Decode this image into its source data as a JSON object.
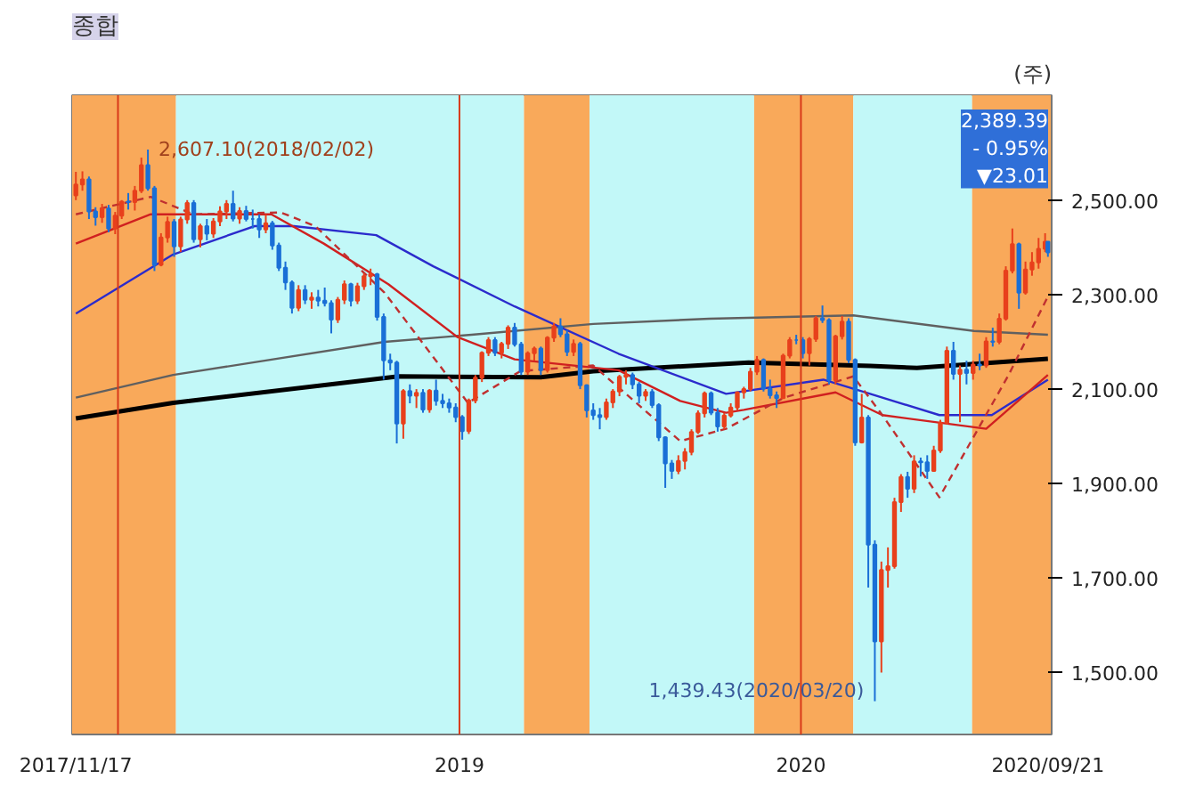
{
  "chart_data": {
    "type": "candlestick",
    "title": "종합",
    "subtitle": "(주)",
    "x": [
      "2017-11-17",
      "2017-11-24",
      "2017-12-01",
      "2017-12-08",
      "2017-12-15",
      "2017-12-22",
      "2017-12-29",
      "2018-01-05",
      "2018-01-12",
      "2018-01-19",
      "2018-01-26",
      "2018-02-02",
      "2018-02-09",
      "2018-02-16",
      "2018-02-23",
      "2018-03-02",
      "2018-03-09",
      "2018-03-16",
      "2018-03-23",
      "2018-03-30",
      "2018-04-06",
      "2018-04-13",
      "2018-04-20",
      "2018-04-27",
      "2018-05-04",
      "2018-05-11",
      "2018-05-18",
      "2018-05-25",
      "2018-06-01",
      "2018-06-08",
      "2018-06-15",
      "2018-06-22",
      "2018-06-29",
      "2018-07-06",
      "2018-07-13",
      "2018-07-20",
      "2018-07-27",
      "2018-08-03",
      "2018-08-10",
      "2018-08-17",
      "2018-08-24",
      "2018-08-31",
      "2018-09-07",
      "2018-09-14",
      "2018-09-21",
      "2018-09-28",
      "2018-10-05",
      "2018-10-12",
      "2018-10-19",
      "2018-10-26",
      "2018-11-02",
      "2018-11-09",
      "2018-11-16",
      "2018-11-23",
      "2018-11-30",
      "2018-12-07",
      "2018-12-14",
      "2018-12-21",
      "2018-12-28",
      "2019-01-04",
      "2019-01-11",
      "2019-01-18",
      "2019-01-25",
      "2019-02-01",
      "2019-02-08",
      "2019-02-15",
      "2019-02-22",
      "2019-03-01",
      "2019-03-08",
      "2019-03-15",
      "2019-03-22",
      "2019-03-29",
      "2019-04-05",
      "2019-04-12",
      "2019-04-19",
      "2019-04-26",
      "2019-05-03",
      "2019-05-10",
      "2019-05-17",
      "2019-05-24",
      "2019-05-31",
      "2019-06-07",
      "2019-06-14",
      "2019-06-21",
      "2019-06-28",
      "2019-07-05",
      "2019-07-12",
      "2019-07-19",
      "2019-07-26",
      "2019-08-02",
      "2019-08-09",
      "2019-08-16",
      "2019-08-23",
      "2019-08-30",
      "2019-09-06",
      "2019-09-13",
      "2019-09-20",
      "2019-09-27",
      "2019-10-04",
      "2019-10-11",
      "2019-10-18",
      "2019-10-25",
      "2019-11-01",
      "2019-11-08",
      "2019-11-15",
      "2019-11-22",
      "2019-11-29",
      "2019-12-06",
      "2019-12-13",
      "2019-12-20",
      "2019-12-27",
      "2020-01-03",
      "2020-01-10",
      "2020-01-17",
      "2020-01-24",
      "2020-01-31",
      "2020-02-07",
      "2020-02-14",
      "2020-02-21",
      "2020-02-28",
      "2020-03-06",
      "2020-03-13",
      "2020-03-20",
      "2020-03-27",
      "2020-04-03",
      "2020-04-10",
      "2020-04-17",
      "2020-04-24",
      "2020-05-01",
      "2020-05-08",
      "2020-05-15",
      "2020-05-22",
      "2020-05-29",
      "2020-06-05",
      "2020-06-12",
      "2020-06-19",
      "2020-06-26",
      "2020-07-03",
      "2020-07-10",
      "2020-07-17",
      "2020-07-24",
      "2020-07-31",
      "2020-08-07",
      "2020-08-14",
      "2020-08-21",
      "2020-08-28",
      "2020-09-04",
      "2020-09-11",
      "2020-09-18",
      "2020-09-21"
    ],
    "ohlc": [
      [
        2510,
        2560,
        2500,
        2533
      ],
      [
        2533,
        2561,
        2520,
        2544
      ],
      [
        2544,
        2550,
        2460,
        2476
      ],
      [
        2476,
        2485,
        2446,
        2464
      ],
      [
        2464,
        2492,
        2452,
        2482
      ],
      [
        2482,
        2490,
        2432,
        2440
      ],
      [
        2440,
        2475,
        2428,
        2467
      ],
      [
        2467,
        2500,
        2460,
        2497
      ],
      [
        2497,
        2515,
        2480,
        2496
      ],
      [
        2496,
        2530,
        2478,
        2520
      ],
      [
        2520,
        2590,
        2515,
        2574
      ],
      [
        2574,
        2607.1,
        2520,
        2525
      ],
      [
        2525,
        2530,
        2350,
        2363
      ],
      [
        2363,
        2430,
        2360,
        2421
      ],
      [
        2421,
        2465,
        2410,
        2454
      ],
      [
        2454,
        2460,
        2380,
        2402
      ],
      [
        2402,
        2465,
        2390,
        2459
      ],
      [
        2459,
        2500,
        2450,
        2494
      ],
      [
        2494,
        2500,
        2410,
        2417
      ],
      [
        2417,
        2450,
        2400,
        2445
      ],
      [
        2445,
        2460,
        2415,
        2429
      ],
      [
        2429,
        2462,
        2420,
        2455
      ],
      [
        2455,
        2487,
        2445,
        2476
      ],
      [
        2476,
        2500,
        2460,
        2492
      ],
      [
        2492,
        2520,
        2455,
        2461
      ],
      [
        2461,
        2485,
        2450,
        2477
      ],
      [
        2477,
        2488,
        2455,
        2460
      ],
      [
        2460,
        2480,
        2440,
        2460
      ],
      [
        2460,
        2470,
        2420,
        2438
      ],
      [
        2438,
        2470,
        2430,
        2451
      ],
      [
        2451,
        2456,
        2395,
        2404
      ],
      [
        2404,
        2410,
        2350,
        2357
      ],
      [
        2357,
        2370,
        2310,
        2326
      ],
      [
        2326,
        2330,
        2260,
        2272
      ],
      [
        2272,
        2320,
        2265,
        2310
      ],
      [
        2310,
        2320,
        2280,
        2289
      ],
      [
        2289,
        2305,
        2270,
        2294
      ],
      [
        2294,
        2310,
        2275,
        2287
      ],
      [
        2287,
        2315,
        2275,
        2282
      ],
      [
        2282,
        2288,
        2218,
        2247
      ],
      [
        2247,
        2295,
        2240,
        2289
      ],
      [
        2289,
        2330,
        2280,
        2322
      ],
      [
        2322,
        2325,
        2275,
        2287
      ],
      [
        2287,
        2325,
        2280,
        2318
      ],
      [
        2318,
        2345,
        2310,
        2339
      ],
      [
        2339,
        2355,
        2320,
        2343
      ],
      [
        2343,
        2346,
        2245,
        2253
      ],
      [
        2253,
        2260,
        2120,
        2161
      ],
      [
        2161,
        2175,
        2140,
        2156
      ],
      [
        2156,
        2160,
        1985,
        2027
      ],
      [
        2027,
        2100,
        1995,
        2096
      ],
      [
        2096,
        2110,
        2070,
        2086
      ],
      [
        2086,
        2100,
        2060,
        2092
      ],
      [
        2092,
        2100,
        2050,
        2057
      ],
      [
        2057,
        2100,
        2050,
        2097
      ],
      [
        2097,
        2120,
        2065,
        2075
      ],
      [
        2075,
        2090,
        2060,
        2070
      ],
      [
        2070,
        2080,
        2050,
        2061
      ],
      [
        2061,
        2070,
        2030,
        2041
      ],
      [
        2041,
        2045,
        1993,
        2011
      ],
      [
        2011,
        2080,
        2005,
        2076
      ],
      [
        2076,
        2130,
        2070,
        2124
      ],
      [
        2124,
        2180,
        2115,
        2177
      ],
      [
        2177,
        2210,
        2170,
        2204
      ],
      [
        2204,
        2210,
        2170,
        2177
      ],
      [
        2177,
        2200,
        2165,
        2196
      ],
      [
        2196,
        2235,
        2185,
        2230
      ],
      [
        2230,
        2240,
        2190,
        2195
      ],
      [
        2195,
        2200,
        2130,
        2137
      ],
      [
        2137,
        2180,
        2130,
        2176
      ],
      [
        2176,
        2190,
        2160,
        2186
      ],
      [
        2186,
        2190,
        2130,
        2140
      ],
      [
        2140,
        2212,
        2135,
        2209
      ],
      [
        2209,
        2240,
        2200,
        2233
      ],
      [
        2233,
        2250,
        2210,
        2216
      ],
      [
        2216,
        2225,
        2170,
        2179
      ],
      [
        2179,
        2205,
        2170,
        2196
      ],
      [
        2196,
        2200,
        2100,
        2108
      ],
      [
        2108,
        2110,
        2040,
        2055
      ],
      [
        2055,
        2070,
        2035,
        2045
      ],
      [
        2045,
        2060,
        2015,
        2041
      ],
      [
        2041,
        2080,
        2035,
        2072
      ],
      [
        2072,
        2100,
        2060,
        2095
      ],
      [
        2095,
        2130,
        2085,
        2126
      ],
      [
        2126,
        2140,
        2110,
        2130
      ],
      [
        2130,
        2135,
        2100,
        2110
      ],
      [
        2110,
        2115,
        2070,
        2086
      ],
      [
        2086,
        2100,
        2075,
        2094
      ],
      [
        2094,
        2100,
        2060,
        2066
      ],
      [
        2066,
        2070,
        1990,
        1998
      ],
      [
        1998,
        2000,
        1891,
        1943
      ],
      [
        1943,
        1950,
        1910,
        1927
      ],
      [
        1927,
        1960,
        1920,
        1948
      ],
      [
        1948,
        1975,
        1930,
        1967
      ],
      [
        1967,
        2015,
        1960,
        2009
      ],
      [
        2009,
        2055,
        2005,
        2049
      ],
      [
        2049,
        2095,
        2040,
        2091
      ],
      [
        2091,
        2095,
        2045,
        2050
      ],
      [
        2050,
        2060,
        2010,
        2021
      ],
      [
        2021,
        2050,
        2015,
        2044
      ],
      [
        2044,
        2070,
        2040,
        2061
      ],
      [
        2061,
        2095,
        2055,
        2093
      ],
      [
        2093,
        2105,
        2080,
        2100
      ],
      [
        2100,
        2145,
        2095,
        2137
      ],
      [
        2137,
        2170,
        2130,
        2162
      ],
      [
        2162,
        2165,
        2095,
        2101
      ],
      [
        2101,
        2120,
        2080,
        2087
      ],
      [
        2087,
        2095,
        2060,
        2081
      ],
      [
        2081,
        2175,
        2080,
        2171
      ],
      [
        2171,
        2210,
        2165,
        2204
      ],
      [
        2204,
        2215,
        2195,
        2204
      ],
      [
        2204,
        2210,
        2165,
        2176
      ],
      [
        2176,
        2210,
        2150,
        2206
      ],
      [
        2206,
        2255,
        2200,
        2250
      ],
      [
        2250,
        2277,
        2240,
        2246
      ],
      [
        2246,
        2250,
        2110,
        2119
      ],
      [
        2119,
        2215,
        2110,
        2212
      ],
      [
        2212,
        2255,
        2205,
        2243
      ],
      [
        2243,
        2250,
        2155,
        2162
      ],
      [
        2162,
        2165,
        1980,
        1987
      ],
      [
        1987,
        2090,
        1985,
        2040
      ],
      [
        2040,
        2045,
        1680,
        1771
      ],
      [
        1771,
        1780,
        1439.43,
        1566
      ],
      [
        1566,
        1735,
        1500,
        1717
      ],
      [
        1717,
        1765,
        1680,
        1725
      ],
      [
        1725,
        1870,
        1720,
        1861
      ],
      [
        1861,
        1920,
        1840,
        1914
      ],
      [
        1914,
        1925,
        1870,
        1889
      ],
      [
        1889,
        1960,
        1880,
        1947
      ],
      [
        1947,
        1955,
        1915,
        1945
      ],
      [
        1945,
        1960,
        1910,
        1927
      ],
      [
        1927,
        1980,
        1925,
        1970
      ],
      [
        1970,
        2035,
        1965,
        2029
      ],
      [
        2029,
        2190,
        2025,
        2181
      ],
      [
        2181,
        2200,
        2120,
        2132
      ],
      [
        2132,
        2150,
        2030,
        2141
      ],
      [
        2141,
        2160,
        2110,
        2134
      ],
      [
        2134,
        2160,
        2120,
        2152
      ],
      [
        2152,
        2175,
        2140,
        2150
      ],
      [
        2150,
        2210,
        2145,
        2201
      ],
      [
        2201,
        2230,
        2190,
        2200
      ],
      [
        2200,
        2260,
        2195,
        2249
      ],
      [
        2249,
        2360,
        2245,
        2351
      ],
      [
        2351,
        2440,
        2345,
        2407
      ],
      [
        2407,
        2410,
        2270,
        2304
      ],
      [
        2304,
        2370,
        2300,
        2353
      ],
      [
        2353,
        2390,
        2340,
        2368
      ],
      [
        2368,
        2420,
        2355,
        2397
      ],
      [
        2397,
        2430,
        2390,
        2412
      ],
      [
        2412,
        2412,
        2380,
        2389.39
      ]
    ],
    "colors": [
      "#e8401c",
      "#e8401c",
      "#1a6fd6",
      "#1a6fd6",
      "#e8401c",
      "#1a6fd6",
      "#e8401c",
      "#e8401c",
      "#1a6fd6",
      "#e8401c",
      "#e8401c",
      "#1a6fd6",
      "#1a6fd6",
      "#e8401c",
      "#e8401c",
      "#1a6fd6",
      "#e8401c",
      "#e8401c",
      "#1a6fd6",
      "#e8401c",
      "#1a6fd6",
      "#e8401c",
      "#e8401c",
      "#e8401c",
      "#1a6fd6",
      "#e8401c",
      "#1a6fd6",
      "#1a6fd6",
      "#1a6fd6",
      "#e8401c",
      "#1a6fd6",
      "#1a6fd6",
      "#1a6fd6",
      "#1a6fd6",
      "#e8401c",
      "#1a6fd6",
      "#e8401c",
      "#1a6fd6",
      "#1a6fd6",
      "#1a6fd6",
      "#e8401c",
      "#e8401c",
      "#1a6fd6",
      "#e8401c",
      "#e8401c",
      "#e8401c",
      "#1a6fd6",
      "#1a6fd6",
      "#1a6fd6",
      "#1a6fd6",
      "#e8401c",
      "#1a6fd6",
      "#e8401c",
      "#1a6fd6",
      "#e8401c",
      "#1a6fd6",
      "#1a6fd6",
      "#1a6fd6",
      "#1a6fd6",
      "#1a6fd6",
      "#e8401c",
      "#e8401c",
      "#e8401c",
      "#e8401c",
      "#1a6fd6",
      "#e8401c",
      "#e8401c",
      "#1a6fd6",
      "#1a6fd6",
      "#e8401c",
      "#e8401c",
      "#1a6fd6",
      "#e8401c",
      "#e8401c",
      "#1a6fd6",
      "#1a6fd6",
      "#e8401c",
      "#1a6fd6",
      "#1a6fd6",
      "#1a6fd6",
      "#1a6fd6",
      "#e8401c",
      "#e8401c",
      "#e8401c",
      "#e8401c",
      "#1a6fd6",
      "#1a6fd6",
      "#e8401c",
      "#1a6fd6",
      "#1a6fd6",
      "#1a6fd6",
      "#1a6fd6",
      "#e8401c",
      "#e8401c",
      "#e8401c",
      "#e8401c",
      "#e8401c",
      "#1a6fd6",
      "#1a6fd6",
      "#e8401c",
      "#e8401c",
      "#e8401c",
      "#e8401c",
      "#e8401c",
      "#e8401c",
      "#1a6fd6",
      "#1a6fd6",
      "#1a6fd6",
      "#e8401c",
      "#e8401c",
      "#1a6fd6",
      "#1a6fd6",
      "#e8401c",
      "#e8401c",
      "#1a6fd6",
      "#1a6fd6",
      "#e8401c",
      "#e8401c",
      "#1a6fd6",
      "#1a6fd6",
      "#e8401c",
      "#1a6fd6",
      "#1a6fd6",
      "#e8401c",
      "#e8401c",
      "#e8401c",
      "#e8401c",
      "#1a6fd6",
      "#e8401c",
      "#1a6fd6",
      "#1a6fd6",
      "#e8401c",
      "#e8401c",
      "#e8401c",
      "#1a6fd6",
      "#e8401c",
      "#1a6fd6",
      "#e8401c",
      "#1a6fd6",
      "#e8401c",
      "#1a6fd6",
      "#e8401c",
      "#e8401c",
      "#e8401c",
      "#1a6fd6",
      "#e8401c",
      "#e8401c",
      "#e8401c",
      "#e8401c",
      "#1a6fd6"
    ],
    "series": [
      {
        "type": "line",
        "color": "#000000",
        "x": [
          "2017-11-17",
          "2018-03-01",
          "2018-10-28",
          "2019-03-29",
          "2019-05-24",
          "2019-11-06",
          "2020-03-15",
          "2020-05-04",
          "2020-09-21"
        ],
        "values": [
          2038,
          2071,
          2127,
          2125,
          2138,
          2156,
          2149,
          2145,
          2164
        ]
      },
      {
        "type": "line",
        "color": "#606060",
        "x": [
          "2017-11-17",
          "2018-03-01",
          "2018-10-13",
          "2019-01-14",
          "2019-05-24",
          "2019-09-25",
          "2020-02-26",
          "2020-07-04",
          "2020-09-21"
        ],
        "values": [
          2082,
          2130,
          2200,
          2215,
          2238,
          2249,
          2256,
          2223,
          2215
        ]
      },
      {
        "type": "line",
        "color": "#2b2bcc",
        "x": [
          "2017-11-17",
          "2018-03-01",
          "2018-05-27",
          "2018-07-08",
          "2018-10-04",
          "2018-12-04",
          "2019-03-01",
          "2019-06-20",
          "2019-10-13",
          "2020-01-25",
          "2020-03-15",
          "2020-05-28",
          "2020-07-23",
          "2020-09-21"
        ],
        "values": [
          2260,
          2385,
          2445,
          2445,
          2426,
          2360,
          2275,
          2175,
          2090,
          2120,
          2090,
          2045,
          2045,
          2120
        ]
      },
      {
        "type": "line",
        "color": "#d02020",
        "x": [
          "2017-11-17",
          "2018-02-05",
          "2018-06-14",
          "2018-08-09",
          "2018-10-17",
          "2018-12-30",
          "2019-03-01",
          "2019-06-20",
          "2019-08-25",
          "2019-10-13",
          "2019-11-01",
          "2020-02-07",
          "2020-03-28",
          "2020-07-17",
          "2020-09-21"
        ],
        "values": [
          2408,
          2470,
          2470,
          2408,
          2322,
          2210,
          2163,
          2140,
          2075,
          2050,
          2056,
          2093,
          2045,
          2016,
          2130
        ]
      },
      {
        "type": "line",
        "color": "#c03030",
        "line_style": "dashed",
        "x": [
          "2017-11-17",
          "2018-02-05",
          "2018-03-23",
          "2018-06-24",
          "2018-07-31",
          "2018-10-13",
          "2019-01-10",
          "2019-03-07",
          "2019-05-24",
          "2019-08-25",
          "2019-10-13",
          "2019-12-14",
          "2020-02-26",
          "2020-03-28",
          "2020-05-28",
          "2020-08-10",
          "2020-09-21"
        ],
        "values": [
          2470,
          2507,
          2470,
          2474,
          2445,
          2304,
          2071,
          2138,
          2150,
          1990,
          2016,
          2082,
          2127,
          2045,
          1871,
          2130,
          2296
        ]
      }
    ],
    "xlim": [
      "2017-11-13",
      "2020-09-25"
    ],
    "ylim": [
      1369,
      2722
    ],
    "xticks": [
      {
        "value": "2017-11-17",
        "label": "2017/11/17"
      },
      "2019",
      "2020",
      {
        "value": "2020-09-21",
        "label": "2020/09/21"
      }
    ],
    "yticks": [
      {
        "value": 1500,
        "label": "1,500.00"
      },
      {
        "value": 1700,
        "label": "1,700.00"
      },
      {
        "value": 1900,
        "label": "1,900.00"
      },
      {
        "value": 2100,
        "label": "2,100.00"
      },
      {
        "value": 2300,
        "label": "2,300.00"
      },
      {
        "value": 2500,
        "label": "2,500.00"
      }
    ],
    "bands": [
      {
        "axis": "x",
        "from": "2017-11-13",
        "to": "2018-03-04",
        "color": "#f9a95a"
      },
      {
        "axis": "x",
        "from": "2018-03-04",
        "to": "2019-03-11",
        "color": "#c2f8f8"
      },
      {
        "axis": "x",
        "from": "2019-03-11",
        "to": "2019-05-20",
        "color": "#f9a95a"
      },
      {
        "axis": "x",
        "from": "2019-05-20",
        "to": "2019-11-12",
        "color": "#c2f8f8"
      },
      {
        "axis": "x",
        "from": "2019-11-12",
        "to": "2020-02-26",
        "color": "#f9a95a"
      },
      {
        "axis": "x",
        "from": "2020-02-26",
        "to": "2020-07-02",
        "color": "#c2f8f8"
      },
      {
        "axis": "x",
        "from": "2020-07-02",
        "to": "2020-09-25",
        "color": "#f9a95a"
      }
    ],
    "ref_lines": [
      {
        "axis": "x",
        "value": "2018",
        "color": "#d83a1a"
      },
      {
        "axis": "x",
        "value": "2019",
        "color": "#d83a1a"
      },
      {
        "axis": "x",
        "value": "2020",
        "color": "#d83a1a"
      }
    ],
    "annotations": [
      {
        "text": "2,607.10(2018/02/02)",
        "x": "2018-02-02",
        "y": 2607.1
      },
      {
        "text": "1,439.43(2020/03/20)",
        "x": "2020-03-20",
        "y": 1439.43
      },
      "2,389.39\n- 0.95%\n▼23.01"
    ]
  }
}
